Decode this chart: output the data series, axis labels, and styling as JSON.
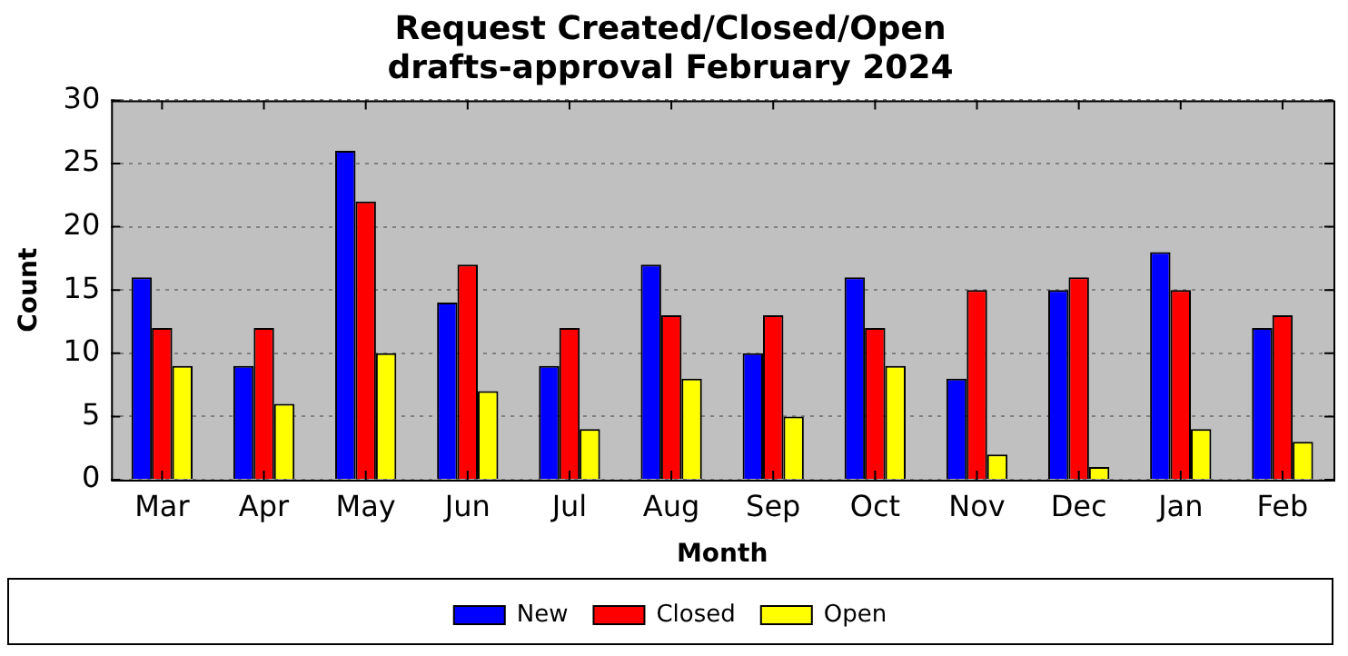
{
  "chart_data": {
    "type": "bar",
    "title": "Request Created/Closed/Open",
    "subtitle": "drafts-approval February 2024",
    "xlabel": "Month",
    "ylabel": "Count",
    "categories": [
      "Mar",
      "Apr",
      "May",
      "Jun",
      "Jul",
      "Aug",
      "Sep",
      "Oct",
      "Nov",
      "Dec",
      "Jan",
      "Feb"
    ],
    "series": [
      {
        "name": "New",
        "color": "#0000ff",
        "values": [
          16,
          9,
          26,
          14,
          9,
          17,
          10,
          16,
          8,
          15,
          18,
          12
        ]
      },
      {
        "name": "Closed",
        "color": "#ff0000",
        "values": [
          12,
          12,
          22,
          17,
          12,
          13,
          13,
          12,
          15,
          16,
          15,
          13
        ]
      },
      {
        "name": "Open",
        "color": "#ffff00",
        "values": [
          9,
          6,
          10,
          7,
          4,
          8,
          5,
          9,
          2,
          1,
          4,
          3
        ]
      }
    ],
    "ylim": [
      0,
      30
    ],
    "yticks": [
      0,
      5,
      10,
      15,
      20,
      25,
      30
    ],
    "grid": "y",
    "legend": "bottom"
  }
}
